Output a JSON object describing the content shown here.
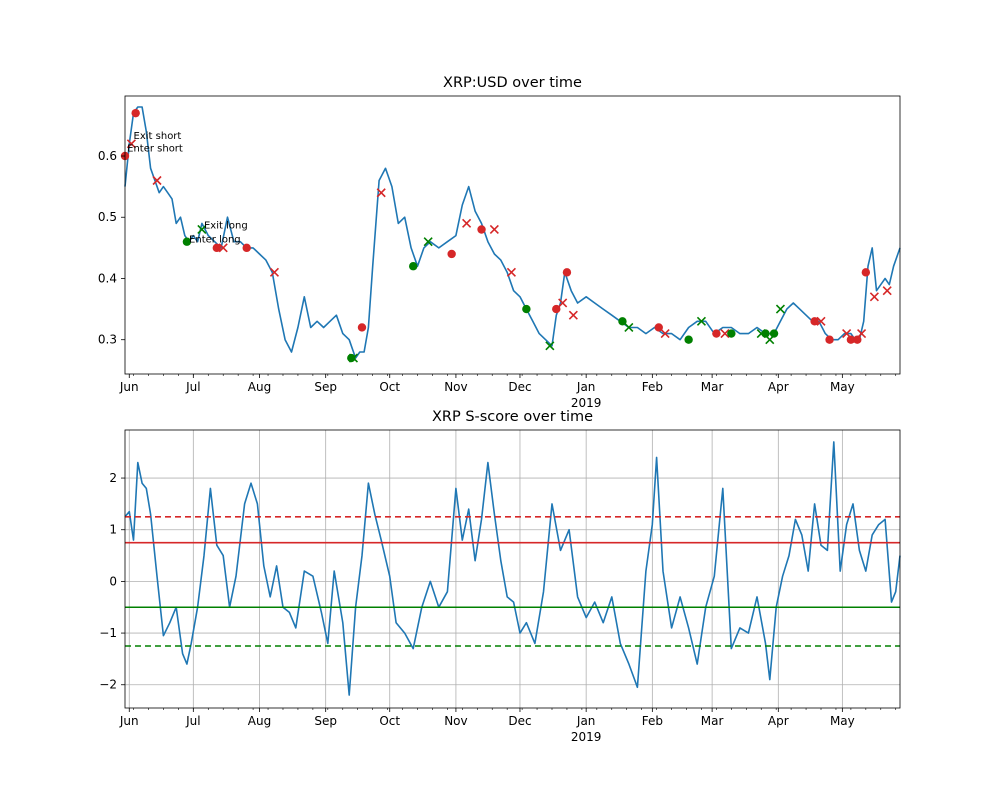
{
  "chart_data": [
    {
      "type": "line",
      "title": "XRP:USD over time",
      "x_tick_labels": [
        "Jun",
        "Jul",
        "Aug",
        "Sep",
        "Oct",
        "Nov",
        "Dec",
        "Jan",
        "Feb",
        "Mar",
        "Apr",
        "May"
      ],
      "x_year_label": "2019",
      "yticks": [
        0.3,
        0.4,
        0.5,
        0.6
      ],
      "ytick_labels": [
        "0.3",
        "0.4",
        "0.5",
        "0.6"
      ],
      "xlim": [
        "2018-05-30",
        "2019-05-28"
      ],
      "ylim": [
        0.244,
        0.698
      ],
      "grid": false,
      "series": [
        {
          "color": "#1f77b4",
          "x": [
            "2018-05-30",
            "2018-06-01",
            "2018-06-03",
            "2018-06-05",
            "2018-06-07",
            "2018-06-09",
            "2018-06-11",
            "2018-06-13",
            "2018-06-15",
            "2018-06-17",
            "2018-06-19",
            "2018-06-21",
            "2018-06-23",
            "2018-06-25",
            "2018-06-27",
            "2018-06-29",
            "2018-07-01",
            "2018-07-03",
            "2018-07-05",
            "2018-07-08",
            "2018-07-11",
            "2018-07-14",
            "2018-07-17",
            "2018-07-20",
            "2018-07-23",
            "2018-07-26",
            "2018-07-29",
            "2018-08-01",
            "2018-08-04",
            "2018-08-07",
            "2018-08-10",
            "2018-08-13",
            "2018-08-16",
            "2018-08-19",
            "2018-08-22",
            "2018-08-25",
            "2018-08-28",
            "2018-08-31",
            "2018-09-03",
            "2018-09-06",
            "2018-09-09",
            "2018-09-12",
            "2018-09-15",
            "2018-09-17",
            "2018-09-19",
            "2018-09-21",
            "2018-09-23",
            "2018-09-26",
            "2018-09-29",
            "2018-10-02",
            "2018-10-05",
            "2018-10-08",
            "2018-10-11",
            "2018-10-14",
            "2018-10-17",
            "2018-10-20",
            "2018-10-24",
            "2018-10-28",
            "2018-11-01",
            "2018-11-04",
            "2018-11-07",
            "2018-11-10",
            "2018-11-13",
            "2018-11-16",
            "2018-11-19",
            "2018-11-22",
            "2018-11-25",
            "2018-11-28",
            "2018-12-01",
            "2018-12-04",
            "2018-12-07",
            "2018-12-10",
            "2018-12-13",
            "2018-12-16",
            "2018-12-18",
            "2018-12-20",
            "2018-12-22",
            "2018-12-25",
            "2018-12-28",
            "2019-01-01",
            "2019-01-05",
            "2019-01-09",
            "2019-01-13",
            "2019-01-17",
            "2019-01-21",
            "2019-01-25",
            "2019-01-29",
            "2019-02-02",
            "2019-02-06",
            "2019-02-10",
            "2019-02-14",
            "2019-02-18",
            "2019-02-22",
            "2019-02-26",
            "2019-03-02",
            "2019-03-06",
            "2019-03-10",
            "2019-03-14",
            "2019-03-18",
            "2019-03-22",
            "2019-03-26",
            "2019-03-30",
            "2019-04-02",
            "2019-04-05",
            "2019-04-08",
            "2019-04-11",
            "2019-04-14",
            "2019-04-17",
            "2019-04-20",
            "2019-04-23",
            "2019-04-26",
            "2019-04-29",
            "2019-05-02",
            "2019-05-05",
            "2019-05-07",
            "2019-05-09",
            "2019-05-11",
            "2019-05-13",
            "2019-05-15",
            "2019-05-17",
            "2019-05-19",
            "2019-05-21",
            "2019-05-23",
            "2019-05-25",
            "2019-05-28"
          ],
          "y": [
            0.55,
            0.62,
            0.67,
            0.68,
            0.68,
            0.64,
            0.58,
            0.56,
            0.54,
            0.55,
            0.54,
            0.53,
            0.49,
            0.5,
            0.47,
            0.46,
            0.47,
            0.46,
            0.49,
            0.47,
            0.46,
            0.45,
            0.5,
            0.46,
            0.46,
            0.45,
            0.45,
            0.44,
            0.43,
            0.41,
            0.35,
            0.3,
            0.28,
            0.32,
            0.37,
            0.32,
            0.33,
            0.32,
            0.33,
            0.34,
            0.31,
            0.3,
            0.27,
            0.28,
            0.28,
            0.32,
            0.42,
            0.56,
            0.58,
            0.55,
            0.49,
            0.5,
            0.45,
            0.42,
            0.45,
            0.46,
            0.45,
            0.46,
            0.47,
            0.52,
            0.55,
            0.51,
            0.49,
            0.46,
            0.44,
            0.43,
            0.41,
            0.38,
            0.37,
            0.35,
            0.33,
            0.31,
            0.3,
            0.29,
            0.34,
            0.36,
            0.41,
            0.38,
            0.36,
            0.37,
            0.36,
            0.35,
            0.34,
            0.33,
            0.32,
            0.32,
            0.31,
            0.32,
            0.31,
            0.31,
            0.3,
            0.32,
            0.33,
            0.33,
            0.31,
            0.32,
            0.32,
            0.31,
            0.31,
            0.32,
            0.31,
            0.31,
            0.33,
            0.35,
            0.36,
            0.35,
            0.34,
            0.33,
            0.33,
            0.31,
            0.3,
            0.3,
            0.31,
            0.31,
            0.3,
            0.3,
            0.33,
            0.42,
            0.45,
            0.38,
            0.39,
            0.4,
            0.39,
            0.42,
            0.45
          ]
        }
      ],
      "markers": [
        {
          "kind": "enter-short",
          "color": "#d62728",
          "shape": "circle",
          "x": [
            "2018-05-30",
            "2018-06-04",
            "2018-09-18",
            "2018-10-30",
            "2018-12-18",
            "2018-12-23",
            "2019-02-04",
            "2019-03-03",
            "2019-04-18",
            "2019-04-25",
            "2019-05-05",
            "2019-05-08",
            "2019-05-12"
          ],
          "y": [
            0.6,
            0.67,
            0.32,
            0.44,
            0.35,
            0.41,
            0.32,
            0.31,
            0.33,
            0.3,
            0.3,
            0.3,
            0.41
          ]
        },
        {
          "kind": "exit-short",
          "color": "#d62728",
          "shape": "x",
          "x": [
            "2018-06-02",
            "2018-06-14",
            "2018-09-27",
            "2018-11-06",
            "2018-12-21",
            "2018-12-26",
            "2019-02-07",
            "2019-03-07",
            "2019-04-21",
            "2019-05-03",
            "2019-05-10",
            "2019-05-16",
            "2019-05-22"
          ],
          "y": [
            0.62,
            0.56,
            0.54,
            0.49,
            0.36,
            0.34,
            0.31,
            0.31,
            0.33,
            0.31,
            0.31,
            0.37,
            0.38
          ]
        },
        {
          "kind": "enter-long",
          "color": "#008000",
          "shape": "circle",
          "x": [
            "2018-06-28",
            "2018-09-13",
            "2018-10-12",
            "2018-12-04",
            "2019-01-18",
            "2019-02-18",
            "2019-03-10",
            "2019-03-26",
            "2019-03-30"
          ],
          "y": [
            0.46,
            0.27,
            0.42,
            0.35,
            0.33,
            0.3,
            0.31,
            0.31,
            0.31
          ]
        },
        {
          "kind": "exit-long",
          "color": "#008000",
          "shape": "x",
          "x": [
            "2018-07-05",
            "2018-09-14",
            "2018-10-19",
            "2018-12-15",
            "2019-01-21",
            "2019-02-24",
            "2019-03-24",
            "2019-03-28",
            "2019-04-02"
          ],
          "y": [
            0.48,
            0.27,
            0.46,
            0.29,
            0.32,
            0.33,
            0.31,
            0.3,
            0.35
          ]
        },
        {
          "kind": "cross-red",
          "color": "#d62728",
          "shape": "x",
          "x": [
            "2018-07-15",
            "2018-08-08",
            "2018-11-19",
            "2018-11-27"
          ],
          "y": [
            0.45,
            0.41,
            0.48,
            0.41
          ]
        },
        {
          "kind": "dot-red",
          "color": "#d62728",
          "shape": "circle",
          "x": [
            "2018-07-12",
            "2018-07-26"
          ],
          "y": [
            0.45,
            0.45
          ]
        },
        {
          "kind": "dot-blue-edge",
          "color": "#d62728",
          "shape": "circle",
          "x": [
            "2018-11-13"
          ],
          "y": [
            0.48
          ]
        }
      ],
      "annotations": [
        {
          "text": "Exit short",
          "x": "2018-06-03",
          "y": 0.628
        },
        {
          "text": "Enter short",
          "x": "2018-05-31",
          "y": 0.607
        },
        {
          "text": "Exit long",
          "x": "2018-07-06",
          "y": 0.482
        },
        {
          "text": "Enter long",
          "x": "2018-06-29",
          "y": 0.459
        }
      ]
    },
    {
      "type": "line",
      "title": "XRP S-score over time",
      "x_tick_labels": [
        "Jun",
        "Jul",
        "Aug",
        "Sep",
        "Oct",
        "Nov",
        "Dec",
        "Jan",
        "Feb",
        "Mar",
        "Apr",
        "May"
      ],
      "x_year_label": "2019",
      "yticks": [
        -2,
        -1,
        0,
        1,
        2
      ],
      "ytick_labels": [
        "−2",
        "−1",
        "0",
        "1",
        "2"
      ],
      "xlim": [
        "2018-05-30",
        "2019-05-28"
      ],
      "ylim": [
        -2.45,
        2.93
      ],
      "grid": true,
      "hlines": [
        {
          "y": 1.25,
          "color": "#d62728",
          "style": "dashed"
        },
        {
          "y": 0.75,
          "color": "#d62728",
          "style": "solid"
        },
        {
          "y": -0.5,
          "color": "#008000",
          "style": "solid"
        },
        {
          "y": -1.25,
          "color": "#008000",
          "style": "dashed"
        }
      ],
      "series": [
        {
          "color": "#1f77b4",
          "x": [
            "2018-05-30",
            "2018-06-01",
            "2018-06-03",
            "2018-06-05",
            "2018-06-07",
            "2018-06-09",
            "2018-06-11",
            "2018-06-14",
            "2018-06-17",
            "2018-06-20",
            "2018-06-23",
            "2018-06-26",
            "2018-06-28",
            "2018-06-30",
            "2018-07-03",
            "2018-07-06",
            "2018-07-09",
            "2018-07-12",
            "2018-07-15",
            "2018-07-18",
            "2018-07-21",
            "2018-07-25",
            "2018-07-28",
            "2018-07-31",
            "2018-08-03",
            "2018-08-06",
            "2018-08-09",
            "2018-08-12",
            "2018-08-15",
            "2018-08-18",
            "2018-08-22",
            "2018-08-26",
            "2018-08-30",
            "2018-09-02",
            "2018-09-05",
            "2018-09-09",
            "2018-09-12",
            "2018-09-15",
            "2018-09-18",
            "2018-09-21",
            "2018-09-24",
            "2018-09-27",
            "2018-10-01",
            "2018-10-04",
            "2018-10-08",
            "2018-10-12",
            "2018-10-16",
            "2018-10-20",
            "2018-10-24",
            "2018-10-28",
            "2018-11-01",
            "2018-11-04",
            "2018-11-07",
            "2018-11-10",
            "2018-11-13",
            "2018-11-16",
            "2018-11-19",
            "2018-11-22",
            "2018-11-25",
            "2018-11-28",
            "2018-12-01",
            "2018-12-04",
            "2018-12-08",
            "2018-12-12",
            "2018-12-16",
            "2018-12-20",
            "2018-12-24",
            "2018-12-28",
            "2019-01-01",
            "2019-01-05",
            "2019-01-09",
            "2019-01-13",
            "2019-01-17",
            "2019-01-21",
            "2019-01-25",
            "2019-01-29",
            "2019-02-01",
            "2019-02-03",
            "2019-02-06",
            "2019-02-10",
            "2019-02-14",
            "2019-02-18",
            "2019-02-22",
            "2019-02-26",
            "2019-03-02",
            "2019-03-06",
            "2019-03-10",
            "2019-03-14",
            "2019-03-18",
            "2019-03-22",
            "2019-03-26",
            "2019-03-28",
            "2019-03-31",
            "2019-04-03",
            "2019-04-06",
            "2019-04-09",
            "2019-04-12",
            "2019-04-15",
            "2019-04-18",
            "2019-04-21",
            "2019-04-24",
            "2019-04-27",
            "2019-04-30",
            "2019-05-03",
            "2019-05-06",
            "2019-05-09",
            "2019-05-12",
            "2019-05-15",
            "2019-05-18",
            "2019-05-21",
            "2019-05-24",
            "2019-05-26",
            "2019-05-28"
          ],
          "y": [
            1.25,
            1.35,
            0.8,
            2.3,
            1.9,
            1.8,
            1.3,
            0.1,
            -1.05,
            -0.8,
            -0.5,
            -1.4,
            -1.6,
            -1.2,
            -0.5,
            0.5,
            1.8,
            0.7,
            0.5,
            -0.5,
            0.1,
            1.5,
            1.9,
            1.5,
            0.3,
            -0.3,
            0.3,
            -0.5,
            -0.6,
            -0.9,
            0.2,
            0.1,
            -0.6,
            -1.2,
            0.2,
            -0.8,
            -2.2,
            -0.5,
            0.5,
            1.9,
            1.3,
            0.8,
            0.1,
            -0.8,
            -1.0,
            -1.3,
            -0.5,
            0.0,
            -0.5,
            -0.2,
            1.8,
            0.8,
            1.4,
            0.4,
            1.2,
            2.3,
            1.3,
            0.4,
            -0.3,
            -0.4,
            -1.0,
            -0.8,
            -1.2,
            -0.2,
            1.5,
            0.6,
            1.0,
            -0.3,
            -0.7,
            -0.4,
            -0.8,
            -0.3,
            -1.2,
            -1.6,
            -2.05,
            0.2,
            1.1,
            2.4,
            0.2,
            -0.9,
            -0.3,
            -0.9,
            -1.6,
            -0.5,
            0.1,
            1.8,
            -1.3,
            -0.9,
            -1.0,
            -0.3,
            -1.2,
            -1.9,
            -0.5,
            0.1,
            0.5,
            1.2,
            0.9,
            0.2,
            1.5,
            0.7,
            0.6,
            2.7,
            0.2,
            1.1,
            1.5,
            0.6,
            0.2,
            0.9,
            1.1,
            1.2,
            -0.4,
            -0.2,
            0.5
          ]
        }
      ]
    }
  ]
}
